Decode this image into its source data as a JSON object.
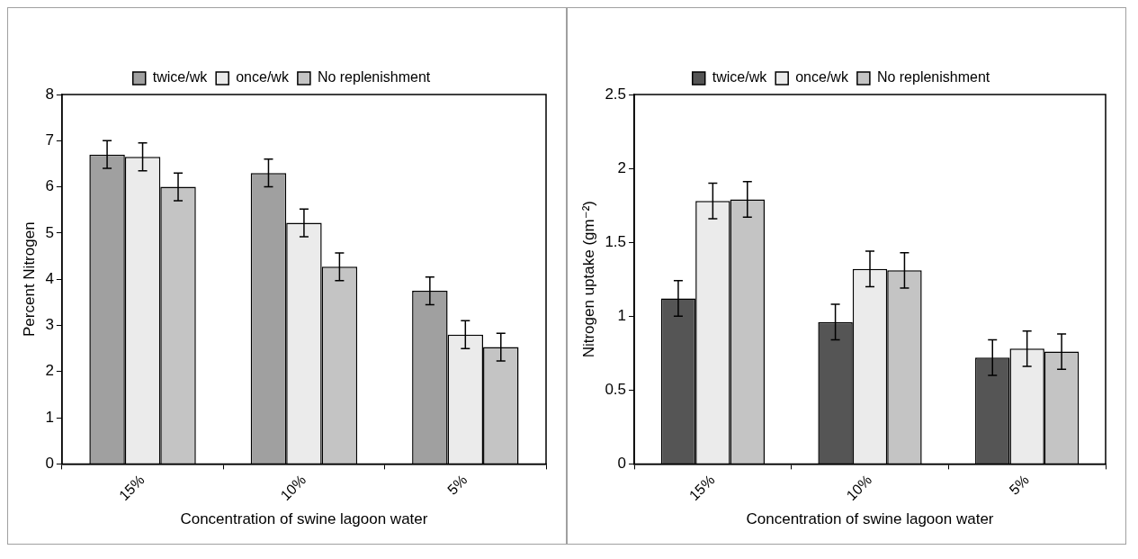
{
  "chart_data": [
    {
      "type": "bar",
      "categories": [
        "15%",
        "10%",
        "5%"
      ],
      "xlabel": "Concentration of swine lagoon water",
      "ylabel": "Percent Nitrogen",
      "series": [
        {
          "name": "twice/wk",
          "color": "#a0a0a0",
          "values": [
            6.7,
            6.3,
            3.75
          ],
          "errors": [
            0.3,
            0.3,
            0.3
          ]
        },
        {
          "name": "once/wk",
          "color": "#ebebeb",
          "values": [
            6.65,
            5.22,
            2.8
          ],
          "errors": [
            0.3,
            0.3,
            0.3
          ]
        },
        {
          "name": "No replenishment",
          "color": "#c4c4c4",
          "values": [
            6.0,
            4.27,
            2.53
          ],
          "errors": [
            0.3,
            0.3,
            0.3
          ]
        }
      ],
      "ylim": [
        0,
        8
      ],
      "yticks": [
        0,
        1,
        2,
        3,
        4,
        5,
        6,
        7,
        8
      ],
      "grid": false,
      "legend": "top"
    },
    {
      "type": "bar",
      "categories": [
        "15%",
        "10%",
        "5%"
      ],
      "xlabel": "Concentration of swine lagoon water",
      "ylabel": "Nitrogen uptake (gm⁻²)",
      "series": [
        {
          "name": "twice/wk",
          "color": "#555555",
          "values": [
            1.12,
            0.96,
            0.72
          ],
          "errors": [
            0.12,
            0.12,
            0.12
          ]
        },
        {
          "name": "once/wk",
          "color": "#ebebeb",
          "values": [
            1.78,
            1.32,
            0.78
          ],
          "errors": [
            0.12,
            0.12,
            0.12
          ]
        },
        {
          "name": "No replenishment",
          "color": "#c4c4c4",
          "values": [
            1.79,
            1.31,
            0.76
          ],
          "errors": [
            0.12,
            0.12,
            0.12
          ]
        }
      ],
      "ylim": [
        0,
        2.5
      ],
      "yticks": [
        0,
        0.5,
        1,
        1.5,
        2,
        2.5
      ],
      "grid": false,
      "legend": "top"
    }
  ]
}
